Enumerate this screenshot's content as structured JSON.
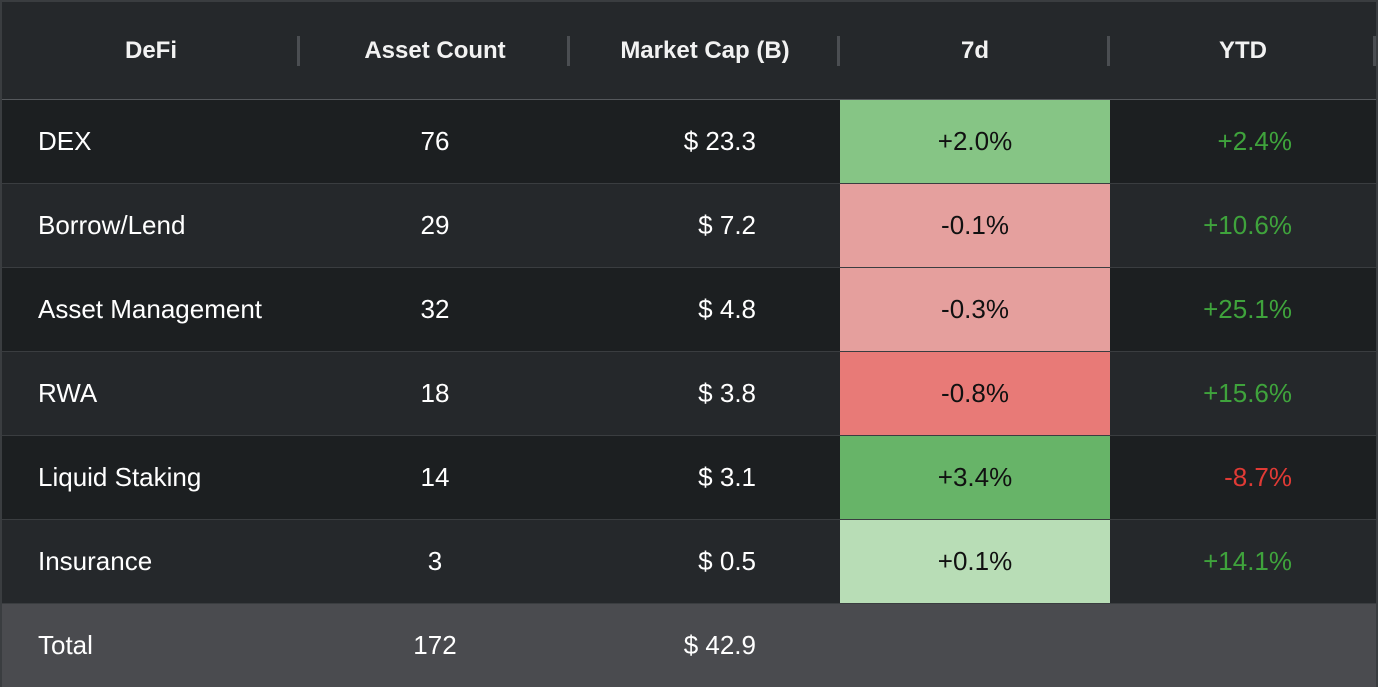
{
  "table": {
    "headers": [
      "DeFi",
      "Asset Count",
      "Market Cap (B)",
      "7d",
      "YTD"
    ],
    "rows": [
      {
        "name": "DEX",
        "count": "76",
        "cap": "$ 23.3",
        "d7": "+2.0%",
        "ytd": "+2.4%",
        "d7_color": "#86c585",
        "ytd_color": "#3fa33c"
      },
      {
        "name": "Borrow/Lend",
        "count": "29",
        "cap": "$ 7.2",
        "d7": "-0.1%",
        "ytd": "+10.6%",
        "d7_color": "#e5a09e",
        "ytd_color": "#3fa33c"
      },
      {
        "name": "Asset Management",
        "count": "32",
        "cap": "$ 4.8",
        "d7": "-0.3%",
        "ytd": "+25.1%",
        "d7_color": "#e59f9d",
        "ytd_color": "#3fa33c"
      },
      {
        "name": "RWA",
        "count": "18",
        "cap": "$ 3.8",
        "d7": "-0.8%",
        "ytd": "+15.6%",
        "d7_color": "#e87a77",
        "ytd_color": "#3fa33c"
      },
      {
        "name": "Liquid Staking",
        "count": "14",
        "cap": "$ 3.1",
        "d7": "+3.4%",
        "ytd": "-8.7%",
        "d7_color": "#67b468",
        "ytd_color": "#e03a35"
      },
      {
        "name": "Insurance",
        "count": "3",
        "cap": "$ 0.5",
        "d7": "+0.1%",
        "ytd": "+14.1%",
        "d7_color": "#b8ddb6",
        "ytd_color": "#3fa33c"
      }
    ],
    "total": {
      "label": "Total",
      "count": "172",
      "cap": "$ 42.9"
    }
  }
}
